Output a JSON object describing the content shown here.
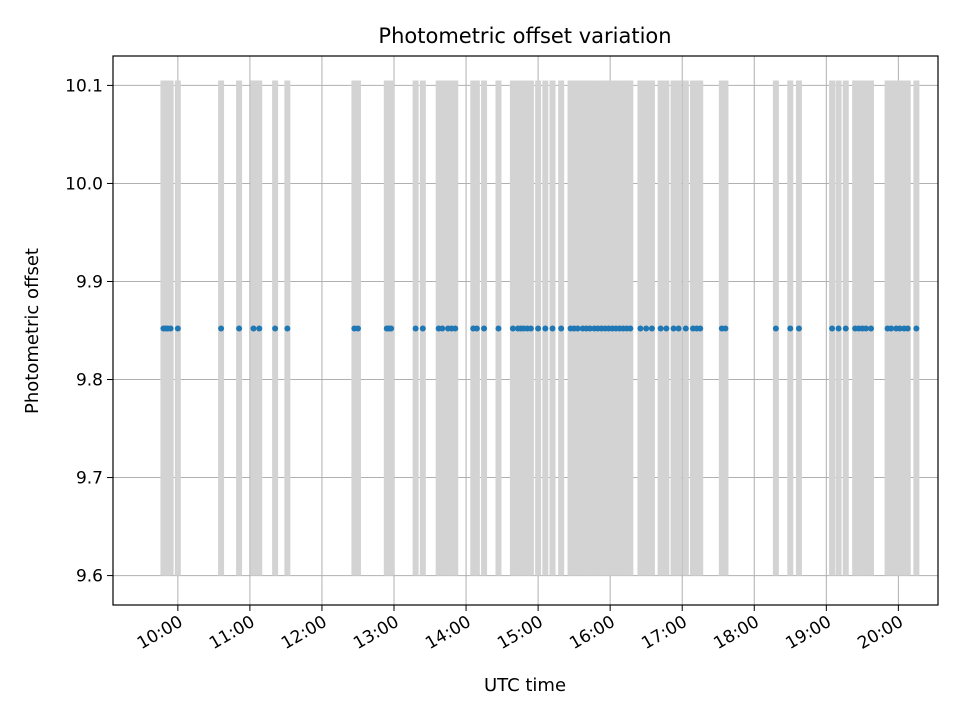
{
  "chart_data": {
    "type": "scatter",
    "title": "Photometric offset variation",
    "xlabel": "UTC time",
    "ylabel": "Photometric offset",
    "xlim": [
      9.1,
      20.55
    ],
    "ylim": [
      9.57,
      10.13
    ],
    "grid": true,
    "x_tick_labels": [
      "10:00",
      "11:00",
      "12:00",
      "13:00",
      "14:00",
      "15:00",
      "16:00",
      "17:00",
      "18:00",
      "19:00",
      "20:00"
    ],
    "x_tick_hours": [
      10,
      11,
      12,
      13,
      14,
      15,
      16,
      17,
      18,
      19,
      20
    ],
    "y_tick_labels": [
      "9.6",
      "9.7",
      "9.8",
      "9.9",
      "10.0",
      "10.1"
    ],
    "y_ticks": [
      9.6,
      9.7,
      9.8,
      9.9,
      10.0,
      10.1
    ],
    "errorbar_range": [
      9.6,
      10.105
    ],
    "errorbar_color": "#d3d3d3",
    "point_color": "#1f77b4",
    "series": [
      {
        "y": 9.852,
        "x_hours": [
          9.8,
          9.83,
          9.86,
          9.9,
          10.0,
          10.6,
          10.85,
          11.05,
          11.13,
          11.35,
          11.52,
          12.45,
          12.5,
          12.9,
          12.93,
          12.96,
          13.3,
          13.4,
          13.62,
          13.67,
          13.75,
          13.8,
          13.85,
          14.1,
          14.15,
          14.25,
          14.45,
          14.65,
          14.72,
          14.76,
          14.8,
          14.85,
          14.9,
          15.0,
          15.1,
          15.2,
          15.32,
          15.45,
          15.5,
          15.55,
          15.62,
          15.67,
          15.72,
          15.78,
          15.83,
          15.88,
          15.93,
          15.98,
          16.03,
          16.08,
          16.13,
          16.18,
          16.23,
          16.28,
          16.42,
          16.5,
          16.58,
          16.7,
          16.78,
          16.88,
          16.95,
          17.05,
          17.15,
          17.2,
          17.25,
          17.55,
          17.6,
          18.3,
          18.5,
          18.62,
          19.08,
          19.17,
          19.27,
          19.4,
          19.45,
          19.5,
          19.55,
          19.62,
          19.85,
          19.9,
          19.97,
          20.02,
          20.08,
          20.13,
          20.25
        ]
      }
    ]
  }
}
